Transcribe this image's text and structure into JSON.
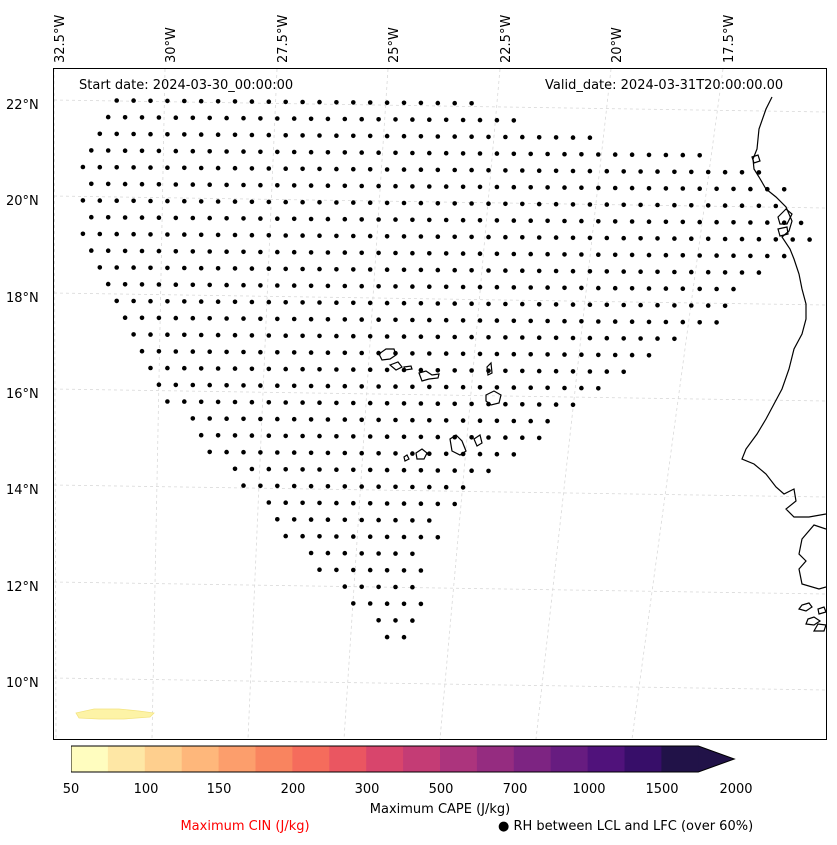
{
  "map": {
    "start_date": "Start date: 2024-03-30_00:00:00",
    "valid_date": "Valid_date: 2024-03-31T20:00:00.00",
    "lon_labels": [
      "32.5°W",
      "30°W",
      "27.5°W",
      "25°W",
      "22.5°W",
      "20°W",
      "17.5°W"
    ],
    "lat_labels": [
      "22°N",
      "20°N",
      "18°N",
      "16°N",
      "14°N",
      "12°N",
      "10°N"
    ],
    "coastline_color": "#000000",
    "gridline_color": "#d9d9d9",
    "marker_icon": "filled-black-dot"
  },
  "colorbar": {
    "ticks": [
      "50",
      "100",
      "150",
      "200",
      "300",
      "500",
      "700",
      "1000",
      "1500",
      "2000"
    ],
    "colors": [
      "#fffdbf",
      "#fee7a5",
      "#fecf8e",
      "#feb77b",
      "#fc9e6c",
      "#f9845f",
      "#f56c5c",
      "#ea5661",
      "#d8456c",
      "#c43c75",
      "#ac347d",
      "#952c80",
      "#7d2482",
      "#671c80",
      "#50127b",
      "#370e69",
      "#211248"
    ],
    "cape_label": "Maximum CAPE (J/kg)",
    "cin_label": "Maximum CIN (J/kg)",
    "cin_color": "#ff0000",
    "rh_label": "RH between LCL and LFC (over 60%)",
    "rh_marker": "●"
  }
}
